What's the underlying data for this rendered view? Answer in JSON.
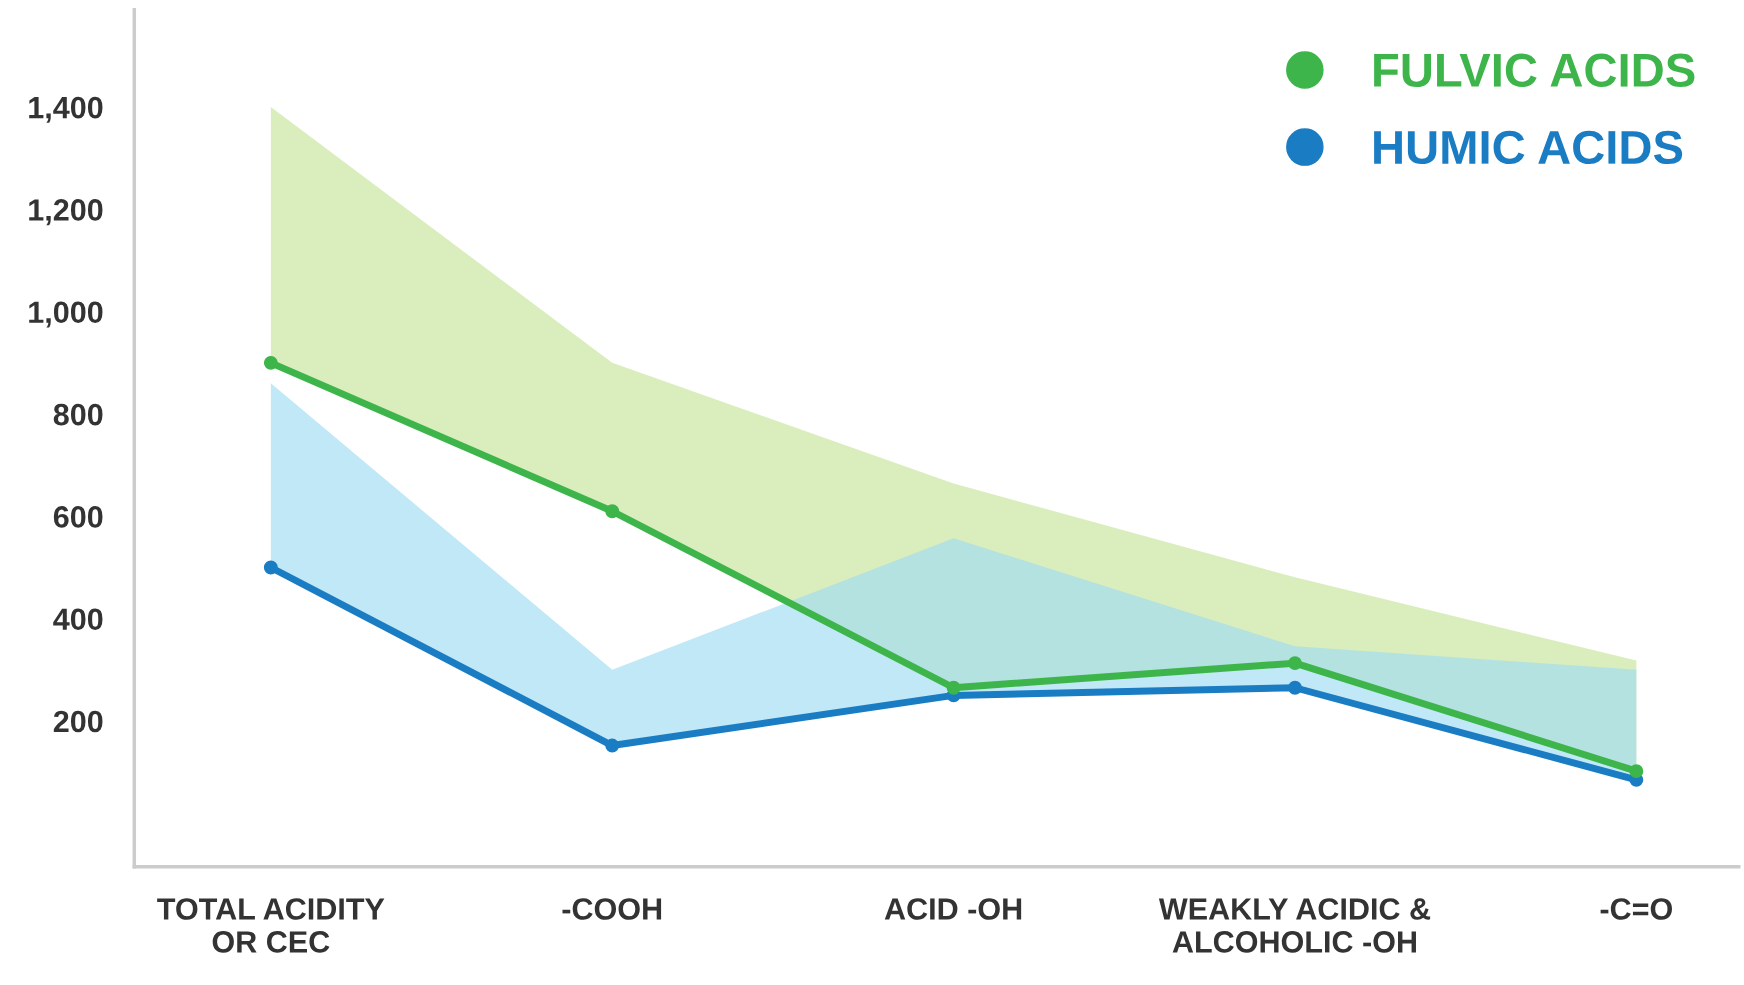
{
  "chart_data": {
    "type": "line",
    "categories": [
      "TOTAL ACIDITY\nOR CEC",
      "-COOH",
      "ACID -OH",
      "WEAKLY ACIDIC &\nALCOHOLIC -OH",
      "-C=O"
    ],
    "series": [
      {
        "name": "FULVIC ACIDS",
        "color": "#3db54a",
        "values": [
          900,
          610,
          265,
          313,
          102
        ],
        "lower": [
          900,
          610,
          265,
          313,
          102
        ],
        "upper": [
          1400,
          900,
          664,
          481,
          318
        ]
      },
      {
        "name": "HUMIC ACIDS",
        "color": "#1a7dc4",
        "values": [
          500,
          152,
          250,
          265,
          85
        ],
        "lower": [
          500,
          152,
          250,
          265,
          85
        ],
        "upper": [
          860,
          300,
          557,
          346,
          300
        ]
      }
    ],
    "ylim": [
      -85,
      1590
    ],
    "yticks": [
      {
        "value": 200,
        "label": "200"
      },
      {
        "value": 400,
        "label": "400"
      },
      {
        "value": 600,
        "label": "600"
      },
      {
        "value": 800,
        "label": "800"
      },
      {
        "value": 1000,
        "label": "1,000"
      },
      {
        "value": 1200,
        "label": "1,200"
      },
      {
        "value": 1400,
        "label": "1,400"
      }
    ],
    "marker": "circle",
    "legend": "top right",
    "grid": false
  }
}
